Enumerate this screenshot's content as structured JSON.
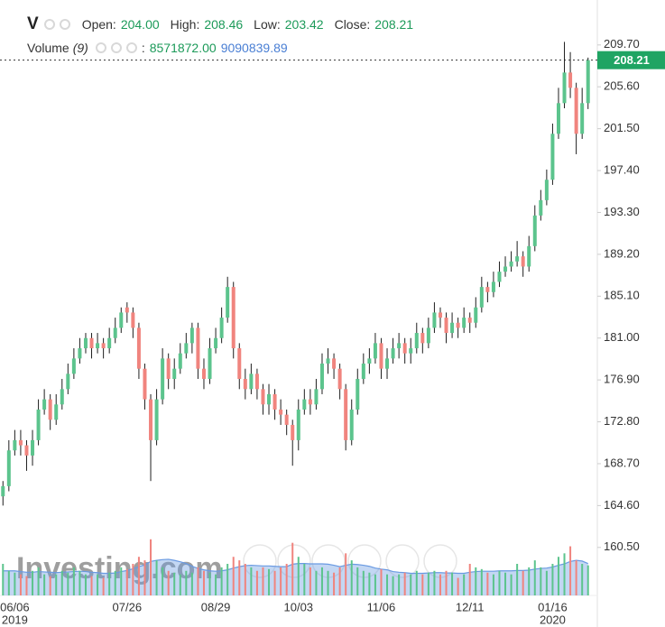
{
  "chart_data": {
    "type": "candlestick",
    "symbol": "V",
    "ohlc_legend": [
      {
        "name": "Open:",
        "value": {
          "value": 204,
          "label": "204.00"
        }
      },
      {
        "name": "High:",
        "value": {
          "value": 208.46,
          "label": "208.46"
        }
      },
      {
        "name": "Low:",
        "value": {
          "value": 203.42,
          "label": "203.42"
        }
      },
      {
        "name": "Close:",
        "value": {
          "value": 208.21,
          "label": "208.21"
        }
      }
    ],
    "volume_legend": {
      "name": "Volume",
      "period": "(9)",
      "separator": ":",
      "values": [
        {
          "value": 8571872,
          "label": "8571872.00"
        },
        {
          "value": 9090839.89,
          "label": "9090839.89"
        }
      ]
    },
    "watermark": "Investing.com",
    "last_price": {
      "value": 208.21,
      "label": "208.21"
    },
    "categories": [
      null,
      null,
      "06/06",
      null,
      null,
      null,
      null,
      null,
      null,
      null,
      null,
      null,
      null,
      null,
      null,
      null,
      null,
      null,
      null,
      null,
      null,
      "07/26",
      null,
      null,
      null,
      null,
      null,
      null,
      null,
      null,
      null,
      null,
      null,
      null,
      null,
      null,
      "08/29",
      null,
      null,
      null,
      null,
      null,
      null,
      null,
      null,
      null,
      null,
      null,
      null,
      null,
      "10/03",
      null,
      null,
      null,
      null,
      null,
      null,
      null,
      null,
      null,
      null,
      null,
      null,
      null,
      "11/06",
      null,
      null,
      null,
      null,
      null,
      null,
      null,
      null,
      null,
      null,
      null,
      null,
      null,
      null,
      "12/11",
      null,
      null,
      null,
      null,
      null,
      null,
      null,
      null,
      null,
      null,
      null,
      null,
      null,
      "01/16",
      null,
      null,
      null,
      null,
      null,
      null
    ],
    "x_year_labels": [
      {
        "category": "06/06",
        "label": "2019"
      },
      {
        "category": "01/16",
        "label": "2020"
      }
    ],
    "open": [
      165.5,
      166.5,
      170,
      171,
      170.5,
      169.5,
      171,
      174,
      175,
      173,
      174.5,
      176,
      177.5,
      179,
      180,
      181,
      180,
      180.5,
      180,
      181,
      182,
      184,
      183.5,
      182,
      178,
      175,
      171,
      175,
      179,
      177,
      178,
      179.5,
      180.5,
      182,
      178,
      177,
      180,
      181,
      183,
      186,
      180,
      177,
      176,
      177.5,
      176,
      174.5,
      175.5,
      174,
      173.5,
      172.5,
      171,
      174,
      175,
      174.5,
      176,
      178.5,
      179,
      178,
      176,
      171,
      174,
      177,
      178.5,
      179,
      180.5,
      178,
      179,
      180,
      180.5,
      179.5,
      180,
      181.5,
      180.5,
      182,
      183.5,
      183,
      181.5,
      182.5,
      182,
      183,
      182.5,
      184,
      186,
      185.5,
      186.5,
      187.5,
      188,
      188.5,
      189,
      188,
      190,
      193,
      194.5,
      196.5,
      201,
      204,
      207,
      205.5,
      201,
      204
    ],
    "high": [
      167,
      171,
      172,
      172,
      171,
      172,
      175,
      176,
      175.5,
      175.5,
      177,
      178.5,
      180,
      181,
      181.5,
      181.5,
      181.5,
      181,
      182,
      183,
      184,
      184.5,
      184,
      182.5,
      178.5,
      175.5,
      176,
      180,
      179.5,
      179,
      180.5,
      181.5,
      182.5,
      182.5,
      179,
      181,
      182,
      184,
      187,
      186.5,
      180.5,
      178,
      178.5,
      178,
      176.5,
      176.5,
      176,
      175,
      174,
      173,
      175,
      176,
      176,
      177,
      179.5,
      180,
      179.5,
      178.5,
      176.5,
      175,
      178,
      179.5,
      180,
      181.5,
      181,
      180,
      181,
      181.5,
      181,
      181,
      182.5,
      182,
      183,
      184.5,
      184,
      183.5,
      183.5,
      183,
      184,
      183.5,
      185,
      187,
      186.5,
      187.5,
      188.5,
      189,
      189.5,
      190.5,
      189.5,
      191,
      194,
      195.5,
      197.5,
      202,
      205.5,
      210,
      209,
      206,
      205.5,
      208.46
    ],
    "low": [
      164.6,
      166,
      169.5,
      169.5,
      168,
      168.5,
      170.5,
      173.5,
      172,
      172.5,
      174,
      175.5,
      177,
      178.5,
      179.5,
      179,
      179.5,
      179,
      179.5,
      180.5,
      181.5,
      182.5,
      181,
      177,
      174,
      167,
      170.5,
      174.5,
      176,
      176,
      177.5,
      179,
      179.5,
      177,
      176,
      176.5,
      179.5,
      180.5,
      182.5,
      179,
      176,
      175,
      175.5,
      175,
      173.5,
      173.5,
      173,
      172.5,
      171.5,
      168.5,
      170,
      173.5,
      173.5,
      174,
      175.5,
      177.5,
      177,
      175,
      170,
      170.5,
      173.5,
      176.5,
      177.5,
      178.5,
      177,
      177,
      178.5,
      179,
      178.5,
      178.5,
      179.5,
      179.5,
      180,
      181.5,
      182,
      180.5,
      181,
      181,
      181.5,
      181.5,
      182,
      183.5,
      184.5,
      185,
      186,
      187,
      187.5,
      188,
      187,
      187.5,
      189.5,
      192.5,
      194,
      196,
      200.5,
      203.5,
      204.5,
      199,
      200.5,
      203.42
    ],
    "close": [
      166.5,
      170,
      171,
      170.5,
      169.5,
      171,
      174,
      175,
      173,
      174.5,
      176,
      177.5,
      179,
      180,
      181,
      180,
      180.5,
      180,
      181,
      182,
      183.5,
      183.5,
      182,
      178,
      175,
      171,
      175,
      179,
      177,
      178,
      179.5,
      180.5,
      182,
      178,
      177,
      180,
      181,
      183,
      186,
      180,
      177,
      176,
      177.5,
      176,
      174.5,
      175.5,
      174,
      173.5,
      172.5,
      171,
      174,
      175,
      174.5,
      176,
      178.5,
      179,
      178,
      176,
      171,
      174,
      177,
      178.5,
      179,
      180.5,
      178,
      179,
      180,
      180.5,
      179.5,
      180,
      181.5,
      180.5,
      182,
      183.5,
      183,
      181.5,
      182.5,
      182,
      183,
      182.5,
      184,
      186,
      185.5,
      186.5,
      187.5,
      188,
      188.5,
      189,
      188,
      190,
      193,
      194.5,
      196.5,
      201,
      204,
      207,
      205.5,
      201,
      204,
      208.21
    ],
    "volume": [
      9000000,
      7000000,
      6500000,
      6000000,
      5500000,
      7000000,
      8000000,
      6000000,
      5500000,
      6000000,
      7000000,
      6500000,
      8000000,
      7000000,
      6000000,
      5500000,
      6000000,
      5000000,
      6500000,
      7000000,
      8000000,
      7500000,
      9000000,
      11000000,
      10000000,
      16000000,
      10000000,
      8000000,
      7000000,
      6500000,
      6000000,
      7000000,
      6500000,
      8000000,
      7000000,
      6500000,
      6000000,
      8000000,
      9000000,
      11000000,
      10000000,
      9000000,
      8000000,
      7000000,
      8000000,
      7500000,
      7000000,
      8000000,
      9000000,
      15000000,
      11000000,
      9000000,
      8000000,
      7000000,
      8000000,
      7000000,
      6500000,
      8000000,
      12000000,
      10000000,
      8000000,
      7000000,
      6500000,
      6000000,
      7500000,
      6000000,
      5500000,
      6000000,
      6500000,
      6000000,
      7000000,
      6000000,
      6500000,
      7000000,
      6000000,
      7000000,
      6500000,
      5000000,
      6000000,
      9000000,
      8000000,
      7500000,
      6500000,
      6000000,
      7000000,
      6500000,
      6000000,
      9000000,
      7000000,
      8000000,
      10000000,
      8000000,
      7000000,
      9000000,
      11000000,
      12000000,
      14000000,
      10000000,
      9000000,
      8571872
    ],
    "volume_ma": [
      7000000,
      7000000,
      7000000,
      6800000,
      6600000,
      6600000,
      6800000,
      6700000,
      6600000,
      6500000,
      6600000,
      6700000,
      6800000,
      6900000,
      6800000,
      6600000,
      6500000,
      6300000,
      6300000,
      6400000,
      6800000,
      7100000,
      7600000,
      8200000,
      8700000,
      9700000,
      10000000,
      10200000,
      10300000,
      10000000,
      9600000,
      9100000,
      8300000,
      7700000,
      7300000,
      7000000,
      6900000,
      7000000,
      7300000,
      7800000,
      8200000,
      8500000,
      8600000,
      8500000,
      8400000,
      8400000,
      8300000,
      8200000,
      8200000,
      8900000,
      9100000,
      9100000,
      9000000,
      9000000,
      9000000,
      8900000,
      8600000,
      8200000,
      8600000,
      8900000,
      8800000,
      8600000,
      8300000,
      7800000,
      7500000,
      7300000,
      6800000,
      6600000,
      6500000,
      6300000,
      6300000,
      6300000,
      6400000,
      6500000,
      6500000,
      6400000,
      6400000,
      6300000,
      6300000,
      6600000,
      6800000,
      6900000,
      6900000,
      6900000,
      7000000,
      7000000,
      7000000,
      7100000,
      7100000,
      7200000,
      7500000,
      7700000,
      7800000,
      8100000,
      8600000,
      9000000,
      9700000,
      10000000,
      9800000,
      9090839.89
    ],
    "volume_lim": [
      0,
      18000000
    ],
    "ylim": [
      155.8,
      214.1
    ],
    "yticks": [
      {
        "value": 160.5,
        "label": "160.50"
      },
      {
        "value": 164.6,
        "label": "164.60"
      },
      {
        "value": 168.7,
        "label": "168.70"
      },
      {
        "value": 172.8,
        "label": "172.80"
      },
      {
        "value": 176.9,
        "label": "176.90"
      },
      {
        "value": 181,
        "label": "181.00"
      },
      {
        "value": 185.1,
        "label": "185.10"
      },
      {
        "value": 189.2,
        "label": "189.20"
      },
      {
        "value": 193.3,
        "label": "193.30"
      },
      {
        "value": 197.4,
        "label": "197.40"
      },
      {
        "value": 201.5,
        "label": "201.50"
      },
      {
        "value": 205.6,
        "label": "205.60"
      },
      {
        "value": 209.7,
        "label": "209.70"
      }
    ],
    "grid": false,
    "up_color": "#5cc48d",
    "down_color": "#f0847e",
    "wick_color": "#1e1e1e",
    "volume_ma_color": "#6a9ae2",
    "last_price_color": "#1fa463"
  }
}
